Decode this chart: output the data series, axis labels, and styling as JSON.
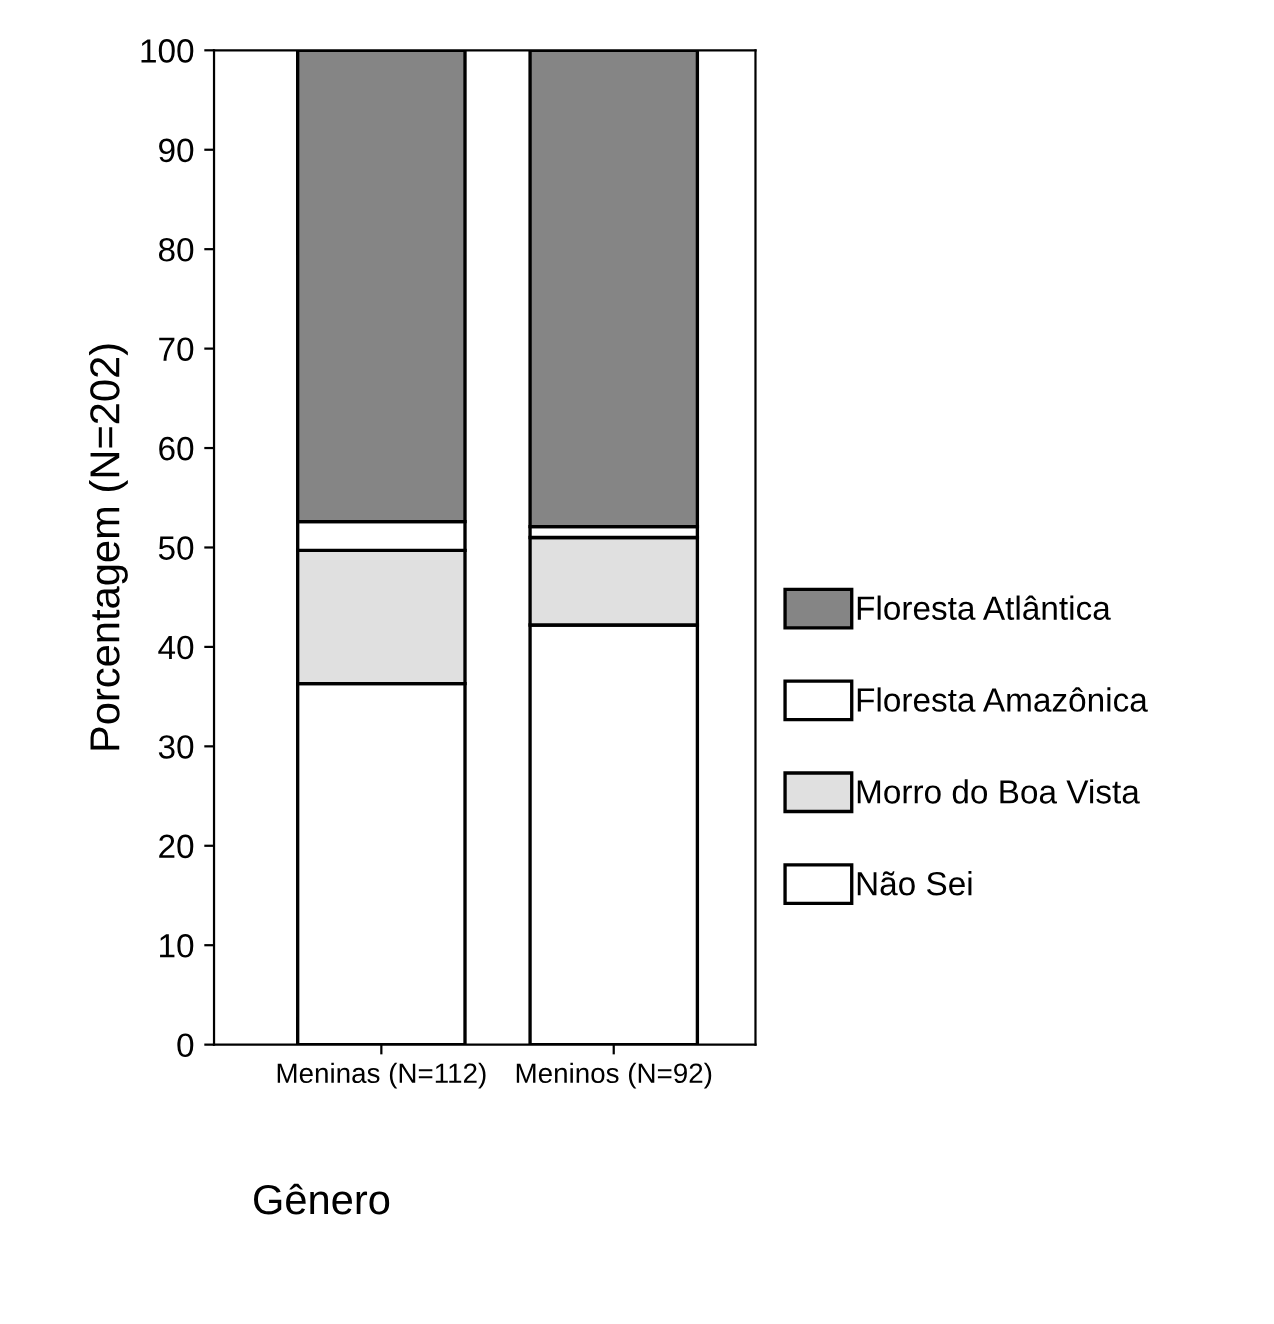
{
  "chart_data": {
    "type": "bar",
    "stacked": true,
    "xlabel": "Gênero",
    "ylabel": "Porcentagem (N=202)",
    "categories": [
      "Meninas (N=112)",
      "Meninos (N=92)"
    ],
    "series": [
      {
        "name": "Não Sei",
        "color": "#ffffff",
        "values": [
          36.3,
          42.2
        ]
      },
      {
        "name": "Morro do Boa Vista",
        "color": "#e0e0e0",
        "values": [
          13.4,
          8.8
        ]
      },
      {
        "name": "Floresta Amazônica",
        "color": "#ffffff",
        "values": [
          2.9,
          1.1
        ]
      },
      {
        "name": "Floresta Atlântica",
        "color": "#858585",
        "values": [
          47.4,
          47.9
        ]
      }
    ],
    "ylim": [
      0,
      100
    ],
    "yticks": [
      0,
      10,
      20,
      30,
      40,
      50,
      60,
      70,
      80,
      90,
      100
    ],
    "grid": false,
    "legend": "right"
  }
}
